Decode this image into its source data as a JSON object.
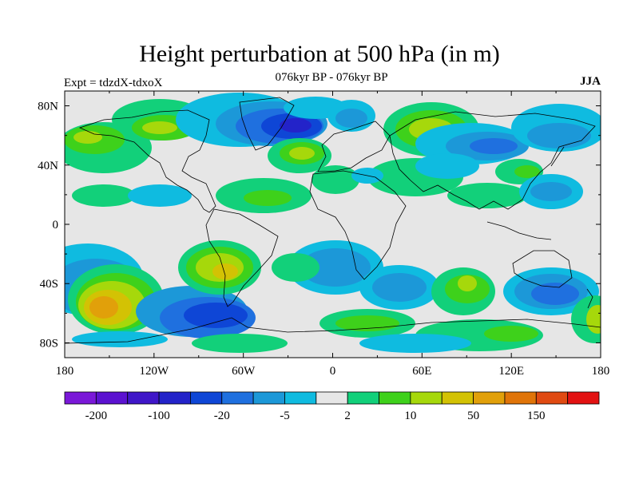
{
  "title": "Height perturbation at 500 hPa (in m)",
  "subtitle": "076kyr BP - 076kyr BP",
  "expt_label": "Expt = tdzdX-tdxoX",
  "season": "JJA",
  "map": {
    "lat_ticks": [
      "80N",
      "40N",
      "0",
      "40S",
      "80S"
    ],
    "lat_values": [
      80,
      40,
      0,
      -40,
      -80
    ],
    "lon_ticks": [
      "180",
      "120W",
      "60W",
      "0",
      "60E",
      "120E",
      "180"
    ],
    "lon_values": [
      -180,
      -120,
      -60,
      0,
      60,
      120,
      180
    ],
    "lat_range": [
      -90,
      90
    ],
    "lon_range": [
      -180,
      180
    ]
  },
  "colorbar": {
    "colors": [
      "#7a18d8",
      "#5b12d0",
      "#3f16c8",
      "#2323c9",
      "#0e46d6",
      "#1f70df",
      "#1c98d8",
      "#0fbbe0",
      "#e6e6e6",
      "#12d07a",
      "#3ed11b",
      "#a6d80b",
      "#d3c204",
      "#e1a00a",
      "#e07408",
      "#e04a12",
      "#e21212"
    ],
    "labels": [
      "-200",
      "-100",
      "-20",
      "-5",
      "2",
      "10",
      "50",
      "150"
    ]
  },
  "field_colors": {
    "neutral": "#e6e6e6",
    "cyan": "#0fbbe0",
    "lightblue": "#1c98d8",
    "blue": "#1f70df",
    "deepblue": "#0e46d6",
    "darkblue": "#2323c9",
    "mint": "#12d07a",
    "green": "#3ed11b",
    "yellowgreen": "#a6d80b",
    "yellow": "#d3c204",
    "orange": "#e1a00a"
  }
}
